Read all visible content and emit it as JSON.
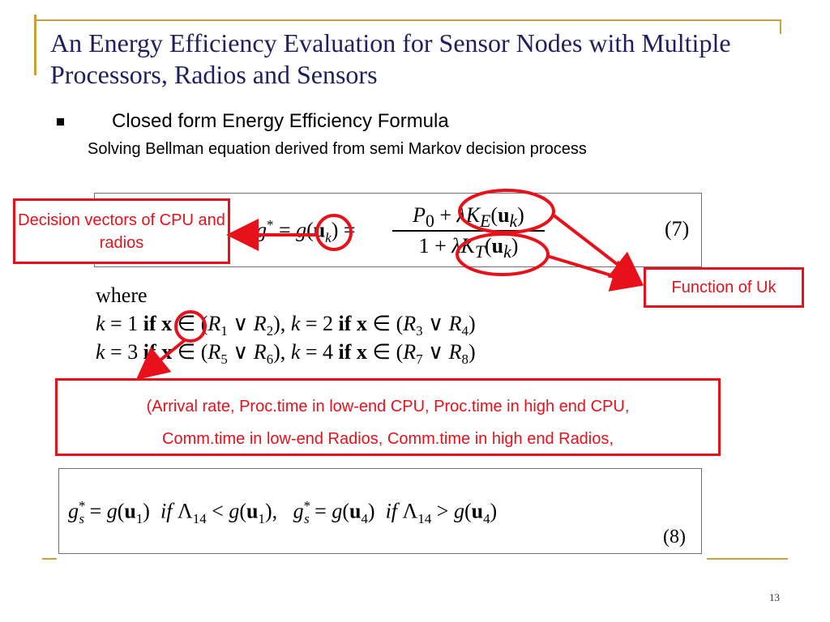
{
  "slide": {
    "title": "An Energy Efficiency Evaluation for Sensor Nodes with Multiple Processors, Radios and Sensors",
    "bullet": "Closed form Energy Efficiency  Formula",
    "subbullet": "Solving Bellman equation derived from semi Markov decision process",
    "page_number": "13"
  },
  "equation7": {
    "lhs": "g* = g(u",
    "lhs_sub": "k",
    "lhs_close": ") =",
    "numerator": "P0 + λKE(uk)",
    "denominator": "1 + λKT(uk)",
    "label": "(7)"
  },
  "where_block": {
    "where": "where",
    "line1": "k = 1 if x ∈ (R1 ∨ R2), k = 2 if x ∈ (R3 ∨ R4)",
    "line2": "k = 3 if x ∈ (R5 ∨ R6), k = 4 if x ∈ (R7 ∨ R8)"
  },
  "equation8": {
    "text": "gs* = g(u1)  if Λ14 < g(u1),   gs* = g(u4)  if Λ14 > g(u4)",
    "label": "(8)"
  },
  "annotations": {
    "decision_vectors": "Decision vectors of CPU and radios",
    "function_of_uk": "Function of Uk",
    "x_components_line1": "(Arrival rate, Proc.time in low-end CPU, Proc.time in high end CPU,",
    "x_components_line2": "Comm.time in low-end Radios,  Comm.time in high end Radios,"
  },
  "colors": {
    "accent_gold": "#c8a03c",
    "annotation_red": "#e8111b",
    "title_navy": "#1f1f5e"
  }
}
